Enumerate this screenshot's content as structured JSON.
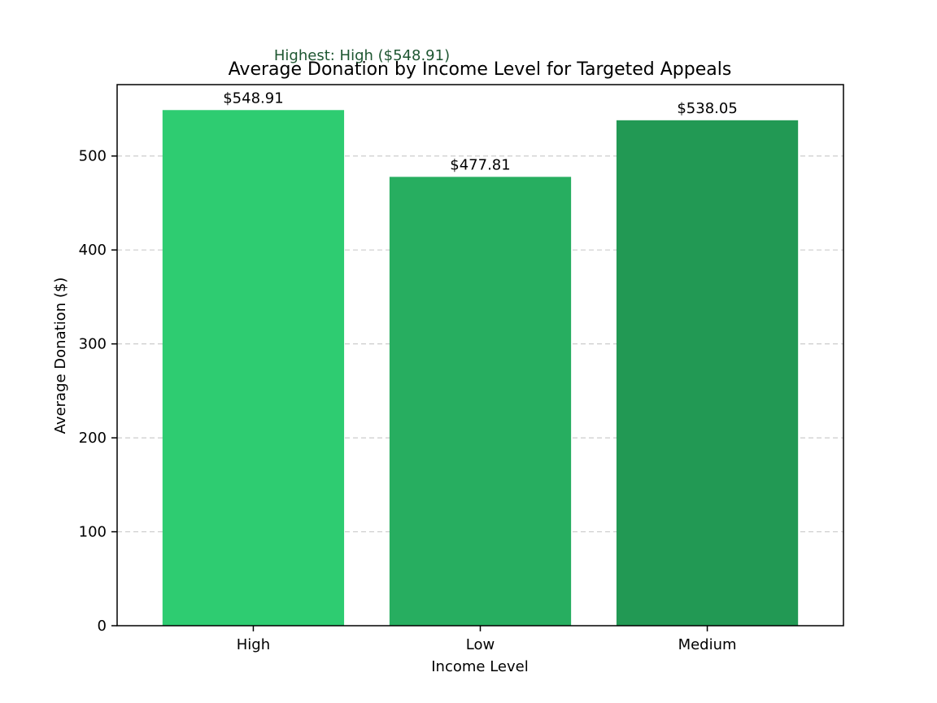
{
  "chart_data": {
    "type": "bar",
    "title": "Average Donation by Income Level for Targeted Appeals",
    "xlabel": "Income Level",
    "ylabel": "Average Donation ($)",
    "categories": [
      "High",
      "Low",
      "Medium"
    ],
    "values": [
      548.91,
      477.81,
      538.05
    ],
    "value_labels": [
      "$548.91",
      "$477.81",
      "$538.05"
    ],
    "bar_colors": [
      "#2ecc71",
      "#27ae60",
      "#229954"
    ],
    "ylim": [
      0,
      576
    ],
    "yticks": [
      0,
      100,
      200,
      300,
      400,
      500
    ],
    "ytick_labels": [
      "0",
      "100",
      "200",
      "300",
      "400",
      "500"
    ],
    "grid": {
      "axis": "y",
      "style": "dashed"
    },
    "annotation": {
      "text": "Highest: High ($548.91)",
      "color": "#1e5631"
    }
  }
}
